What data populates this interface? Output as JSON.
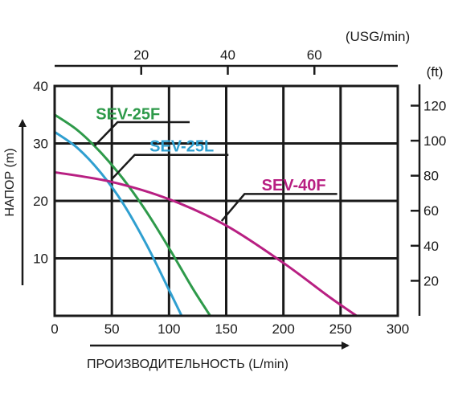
{
  "chart_data": {
    "type": "line",
    "title": "",
    "xlabel": "ПРОИЗВОДИТЕЛЬНОСТЬ (L/min)",
    "ylabel": "НАПОР (m)",
    "xlim": [
      0,
      300
    ],
    "ylim": [
      0,
      40
    ],
    "x_ticks": [
      0,
      50,
      100,
      150,
      200,
      250,
      300
    ],
    "y_ticks": [
      10,
      20,
      30,
      40
    ],
    "secondary_top_axis": {
      "unit": "(USG/min)",
      "ticks": [
        20,
        40,
        60
      ]
    },
    "secondary_right_axis": {
      "unit": "(ft)",
      "ticks": [
        20,
        40,
        60,
        80,
        100,
        120
      ]
    },
    "grid": true,
    "series": [
      {
        "name": "SEV-25F",
        "color": "#2e9a4a",
        "x": [
          0,
          20,
          40,
          60,
          80,
          100,
          120,
          136
        ],
        "y": [
          35,
          32.3,
          28.5,
          23.8,
          18.2,
          11.8,
          5.0,
          0
        ]
      },
      {
        "name": "SEV-25L",
        "color": "#2f9fd0",
        "x": [
          0,
          20,
          40,
          60,
          80,
          100,
          111
        ],
        "y": [
          32,
          29.2,
          25.0,
          19.5,
          12.5,
          4.5,
          0
        ]
      },
      {
        "name": "SEV-40F",
        "color": "#b81f82",
        "x": [
          0,
          50,
          100,
          150,
          200,
          240,
          264
        ],
        "y": [
          25,
          23.3,
          20.3,
          15.7,
          9.2,
          3.3,
          0
        ]
      }
    ]
  }
}
